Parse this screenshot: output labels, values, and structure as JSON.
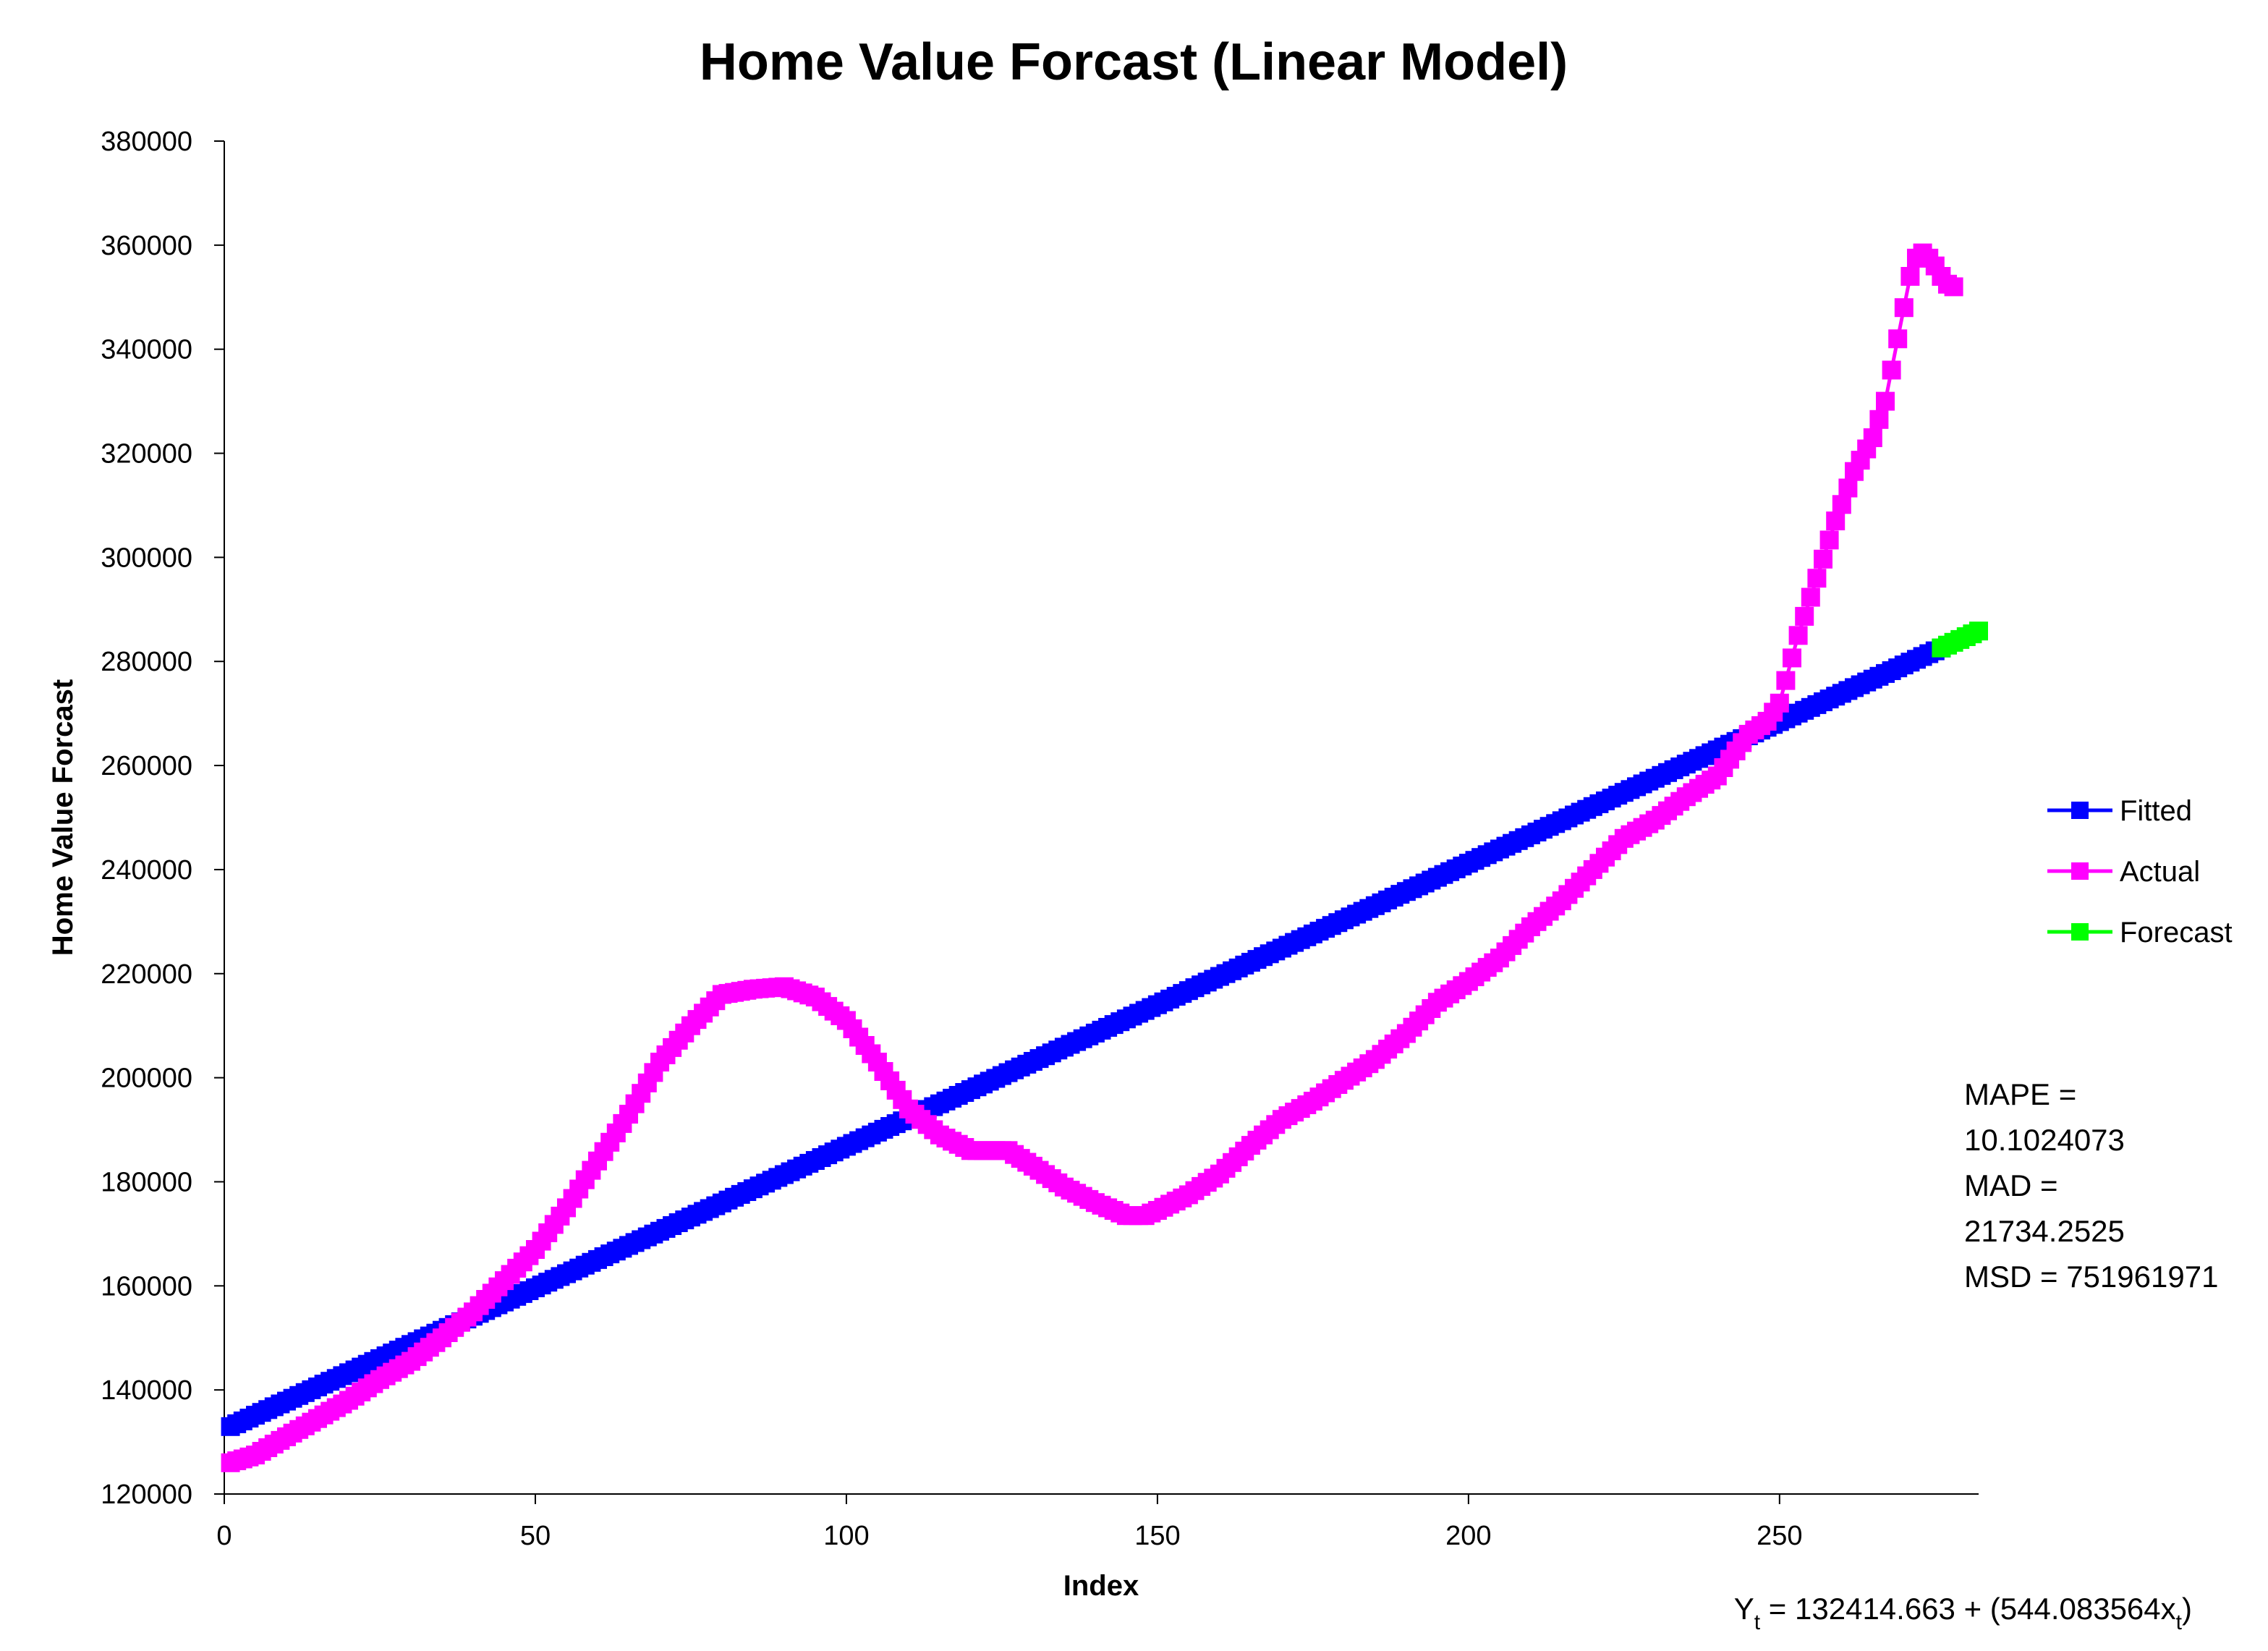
{
  "chart_data": {
    "type": "line",
    "title": "Home Value Forcast (Linear Model)",
    "xlabel": "Index",
    "ylabel": "Home Value Forcast",
    "xlim": [
      0,
      282
    ],
    "ylim": [
      120000,
      380000
    ],
    "x_ticks": [
      0,
      50,
      100,
      150,
      200,
      250
    ],
    "x_tick_labels": [
      "0",
      "50",
      "100",
      "150",
      "200",
      "250"
    ],
    "y_ticks": [
      120000,
      140000,
      160000,
      180000,
      200000,
      220000,
      240000,
      260000,
      280000,
      300000,
      320000,
      340000,
      360000,
      380000
    ],
    "y_tick_labels": [
      "120000",
      "140000",
      "160000",
      "180000",
      "200000",
      "220000",
      "240000",
      "260000",
      "280000",
      "300000",
      "320000",
      "340000",
      "360000",
      "380000"
    ],
    "grid": false,
    "legend_position": "right",
    "series": [
      {
        "name": "Fitted",
        "color": "#0000FF",
        "marker": "square",
        "model": {
          "intercept": 132414.663,
          "slope": 544.083564,
          "x_start": 1,
          "x_end": 276,
          "step": 1
        }
      },
      {
        "name": "Actual",
        "color": "#FF00FF",
        "marker": "square",
        "points": [
          [
            1,
            126000
          ],
          [
            5,
            127500
          ],
          [
            10,
            131000
          ],
          [
            15,
            134500
          ],
          [
            20,
            138000
          ],
          [
            25,
            142000
          ],
          [
            30,
            145500
          ],
          [
            35,
            150000
          ],
          [
            40,
            155000
          ],
          [
            45,
            161000
          ],
          [
            50,
            167000
          ],
          [
            55,
            175000
          ],
          [
            60,
            184000
          ],
          [
            65,
            193000
          ],
          [
            70,
            203000
          ],
          [
            75,
            210000
          ],
          [
            80,
            216000
          ],
          [
            85,
            217000
          ],
          [
            90,
            217500
          ],
          [
            95,
            215500
          ],
          [
            100,
            211000
          ],
          [
            105,
            203000
          ],
          [
            110,
            194000
          ],
          [
            115,
            189000
          ],
          [
            120,
            186000
          ],
          [
            126,
            186000
          ],
          [
            130,
            183000
          ],
          [
            135,
            179000
          ],
          [
            140,
            176000
          ],
          [
            145,
            173500
          ],
          [
            148,
            173500
          ],
          [
            150,
            174500
          ],
          [
            155,
            177500
          ],
          [
            160,
            181500
          ],
          [
            165,
            187000
          ],
          [
            170,
            192000
          ],
          [
            175,
            195500
          ],
          [
            180,
            199500
          ],
          [
            185,
            203500
          ],
          [
            190,
            208500
          ],
          [
            195,
            214500
          ],
          [
            200,
            218500
          ],
          [
            205,
            223000
          ],
          [
            210,
            229000
          ],
          [
            215,
            234000
          ],
          [
            220,
            240000
          ],
          [
            225,
            246000
          ],
          [
            230,
            249500
          ],
          [
            235,
            254000
          ],
          [
            240,
            258000
          ],
          [
            245,
            266000
          ],
          [
            248,
            268500
          ],
          [
            250,
            272000
          ],
          [
            253,
            285000
          ],
          [
            256,
            296000
          ],
          [
            259,
            307000
          ],
          [
            262,
            316500
          ],
          [
            265,
            323000
          ],
          [
            267,
            330000
          ],
          [
            269,
            342000
          ],
          [
            270,
            348000
          ],
          [
            271,
            354000
          ],
          [
            272,
            357500
          ],
          [
            273,
            358500
          ],
          [
            274,
            357500
          ],
          [
            275,
            356000
          ],
          [
            276,
            354000
          ],
          [
            277,
            352500
          ],
          [
            278,
            352000
          ]
        ]
      },
      {
        "name": "Forecast",
        "color": "#00FF00",
        "marker": "square",
        "points": [
          [
            276,
            282585
          ],
          [
            277,
            283129
          ],
          [
            278,
            283673
          ],
          [
            279,
            284217
          ],
          [
            280,
            284761
          ],
          [
            281,
            285305
          ],
          [
            282,
            285849
          ]
        ]
      }
    ],
    "annotations": {
      "stats_lines": [
        "MAPE =",
        "10.1024073",
        "MAD =",
        "21734.2525",
        "MSD = 751961971"
      ],
      "equation_prefix": "Y",
      "equation_sub1": "t",
      "equation_middle": " = 132414.663 + (544.083564x",
      "equation_sub2": "t",
      "equation_suffix": ")"
    }
  }
}
